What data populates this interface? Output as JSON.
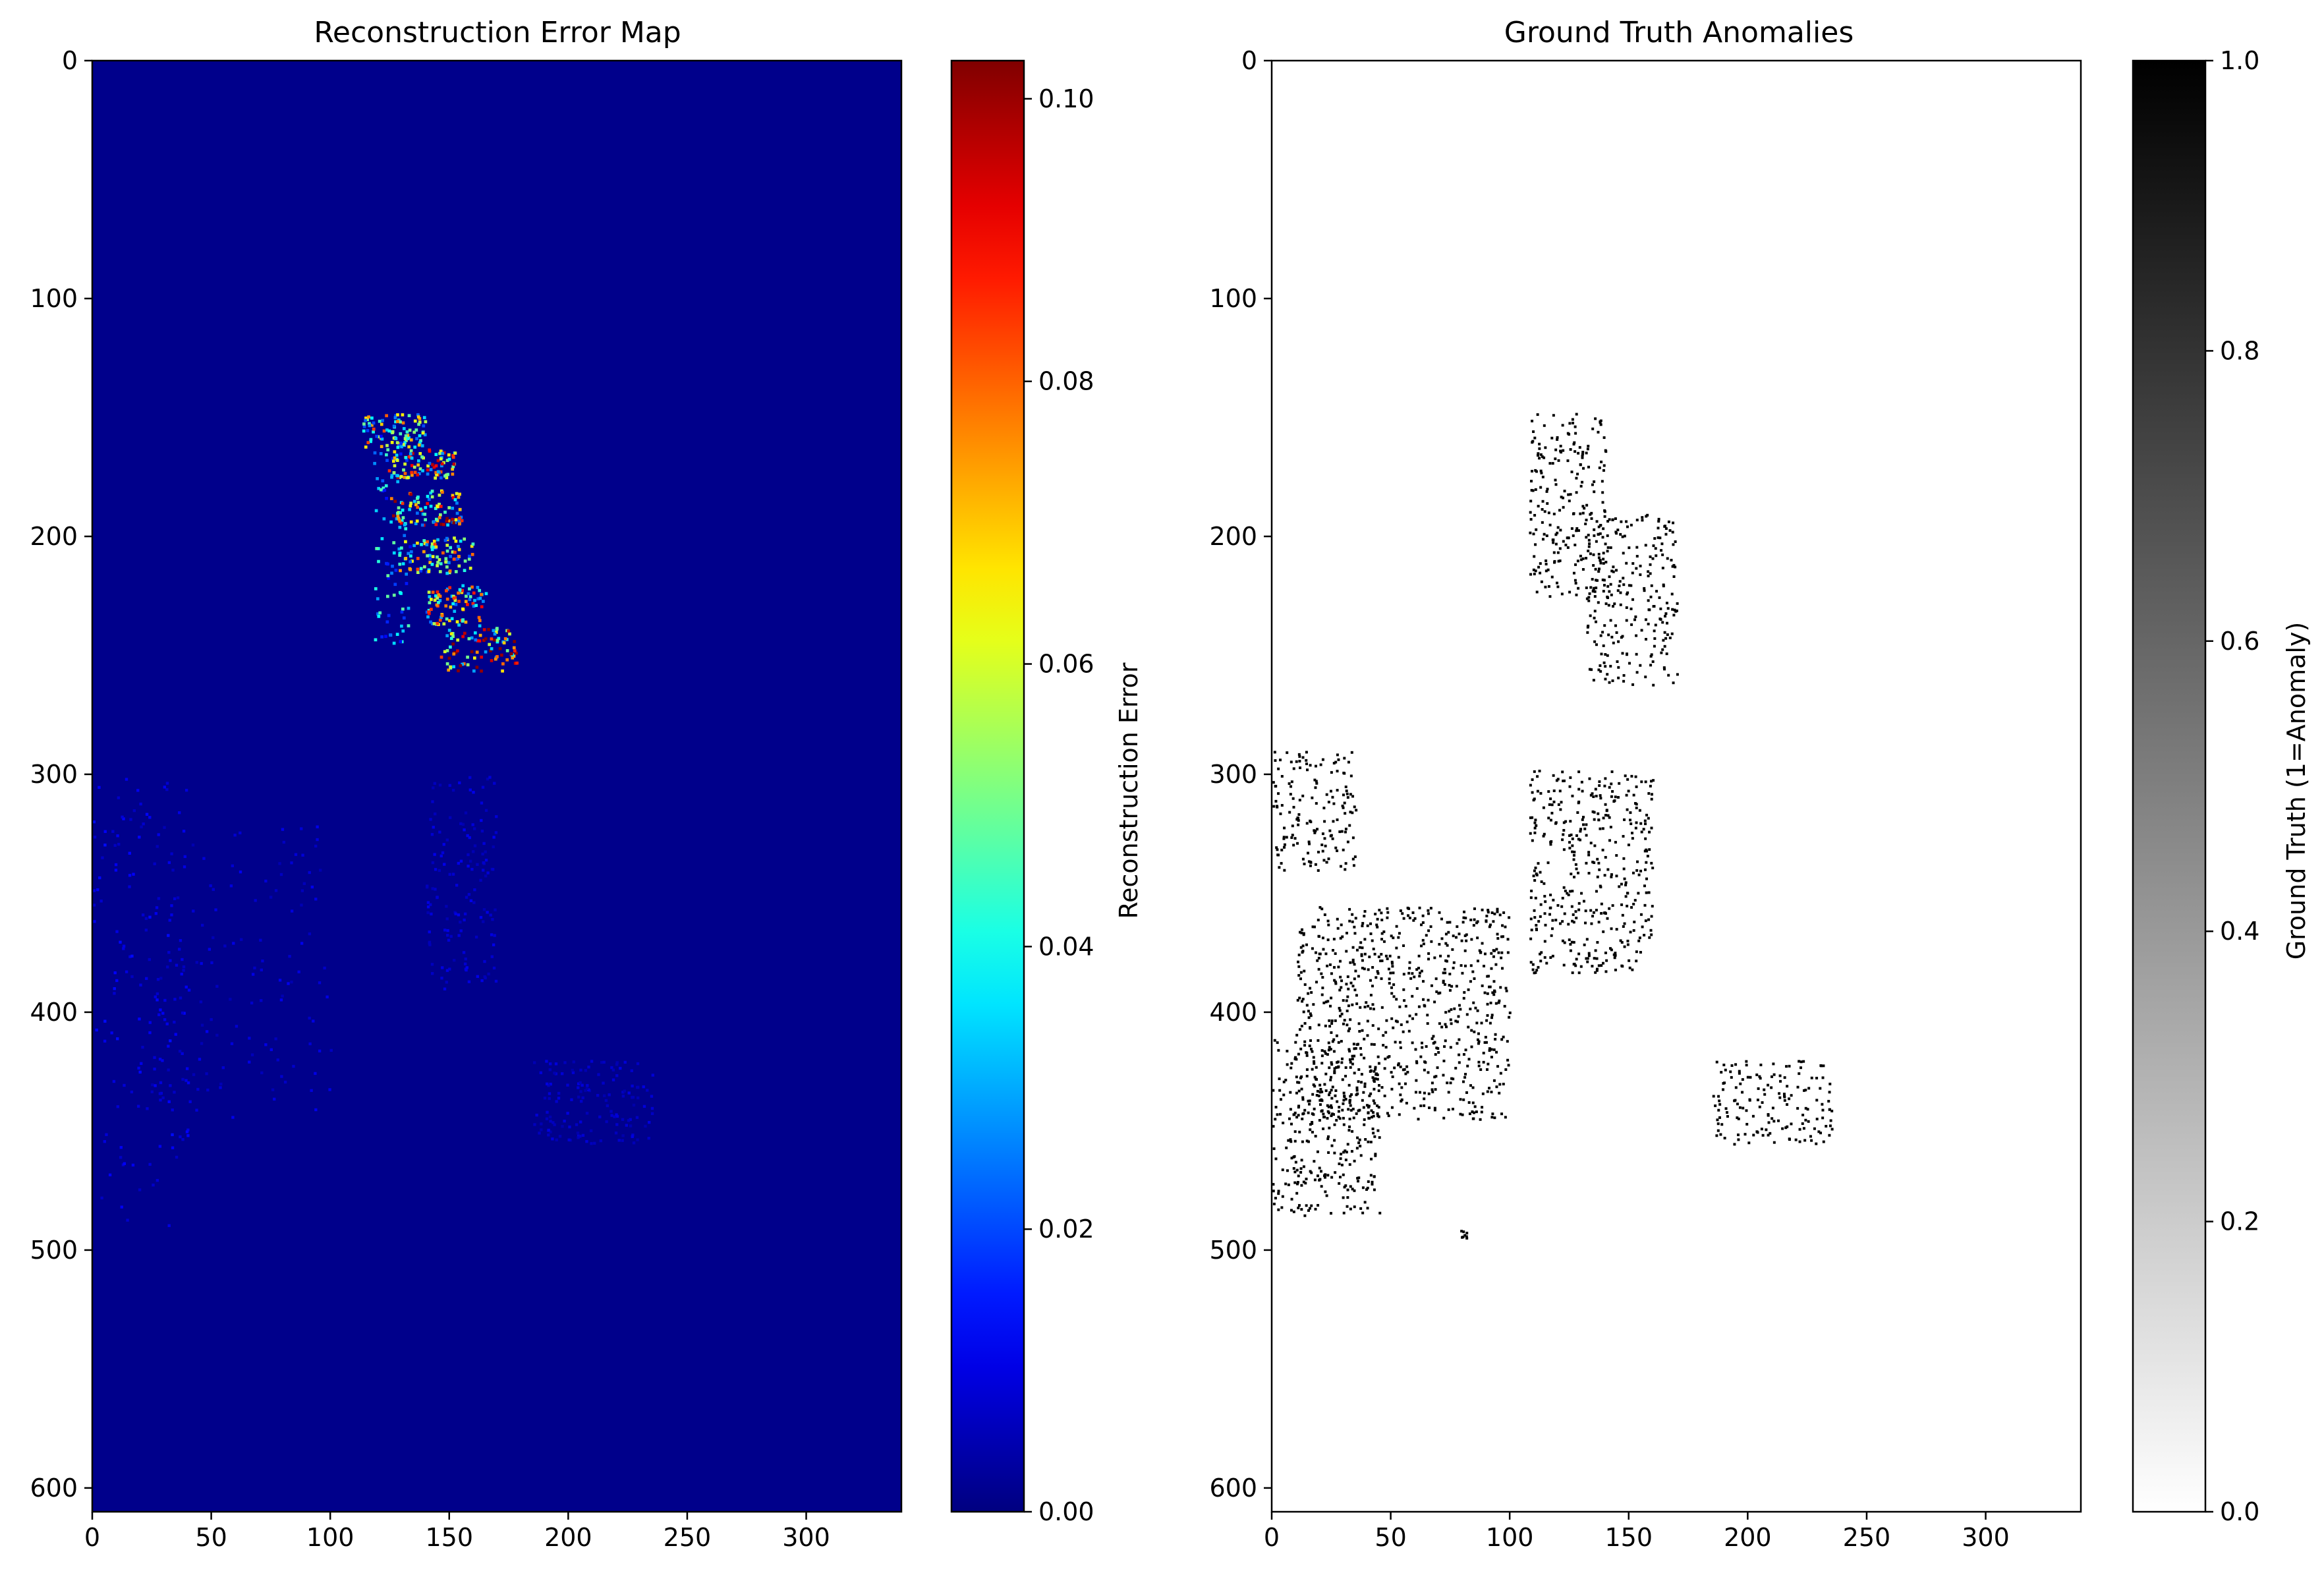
{
  "chart_data": [
    {
      "type": "heatmap",
      "title": "Reconstruction Error Map",
      "xlim": [
        0,
        340
      ],
      "ylim": [
        610,
        0
      ],
      "xticks": [
        0,
        50,
        100,
        150,
        200,
        250,
        300
      ],
      "yticks": [
        0,
        100,
        200,
        300,
        400,
        500,
        600
      ],
      "colormap": "jet",
      "background_color": "#00008b",
      "colorbar": {
        "label": "Reconstruction Error",
        "range": [
          0.0,
          0.1027
        ],
        "ticks": [
          0.0,
          0.02,
          0.04,
          0.06,
          0.08,
          0.1
        ],
        "tick_labels": [
          "0.00",
          "0.02",
          "0.04",
          "0.06",
          "0.08",
          "0.10"
        ],
        "colors": [
          "#00007f",
          "#0000ff",
          "#00bfff",
          "#80ff80",
          "#ffdf00",
          "#ff3000",
          "#7f0000"
        ]
      },
      "highlights": [
        {
          "x": [
            113,
            140
          ],
          "y": [
            148,
            162
          ],
          "value": 0.06
        },
        {
          "x": [
            118,
            133
          ],
          "y": [
            157,
            245
          ],
          "value": 0.035
        },
        {
          "x": [
            124,
            152
          ],
          "y": [
            163,
            175
          ],
          "value": 0.07
        },
        {
          "x": [
            125,
            155
          ],
          "y": [
            180,
            195
          ],
          "value": 0.075
        },
        {
          "x": [
            128,
            160
          ],
          "y": [
            200,
            215
          ],
          "value": 0.06
        },
        {
          "x": [
            140,
            165
          ],
          "y": [
            220,
            237
          ],
          "value": 0.065
        },
        {
          "x": [
            146,
            178
          ],
          "y": [
            238,
            256
          ],
          "value": 0.08
        }
      ],
      "faint_structures": [
        {
          "x": [
            0,
            40
          ],
          "y": [
            300,
            490
          ],
          "value": 0.01
        },
        {
          "x": [
            20,
            100
          ],
          "y": [
            320,
            445
          ],
          "value": 0.008
        },
        {
          "x": [
            140,
            170
          ],
          "y": [
            300,
            390
          ],
          "value": 0.008
        },
        {
          "x": [
            185,
            235
          ],
          "y": [
            420,
            455
          ],
          "value": 0.007
        }
      ]
    },
    {
      "type": "heatmap",
      "title": "Ground Truth Anomalies",
      "xlim": [
        0,
        340
      ],
      "ylim": [
        610,
        0
      ],
      "xticks": [
        0,
        50,
        100,
        150,
        200,
        250,
        300
      ],
      "yticks": [
        0,
        100,
        200,
        300,
        400,
        500,
        600
      ],
      "colormap": "gray_r",
      "background_color": "#ffffff",
      "colorbar": {
        "label": "Ground Truth (1=Anomaly)",
        "range": [
          0.0,
          1.0
        ],
        "ticks": [
          0.0,
          0.2,
          0.4,
          0.6,
          0.8,
          1.0
        ],
        "tick_labels": [
          "0.0",
          "0.2",
          "0.4",
          "0.6",
          "0.8",
          "1.0"
        ],
        "colors": [
          "#ffffff",
          "#000000"
        ]
      },
      "anomaly_regions": [
        {
          "x": [
            108,
            140
          ],
          "y": [
            148,
            225
          ],
          "value": 1
        },
        {
          "x": [
            132,
            170
          ],
          "y": [
            190,
            262
          ],
          "value": 1
        },
        {
          "x": [
            0,
            35
          ],
          "y": [
            290,
            340
          ],
          "value": 1
        },
        {
          "x": [
            108,
            160
          ],
          "y": [
            298,
            383
          ],
          "value": 1
        },
        {
          "x": [
            10,
            100
          ],
          "y": [
            355,
            445
          ],
          "value": 1
        },
        {
          "x": [
            0,
            45
          ],
          "y": [
            410,
            485
          ],
          "value": 1
        },
        {
          "x": [
            185,
            235
          ],
          "y": [
            420,
            455
          ],
          "value": 1
        },
        {
          "x": [
            78,
            82
          ],
          "y": [
            491,
            496
          ],
          "value": 1
        }
      ]
    }
  ]
}
